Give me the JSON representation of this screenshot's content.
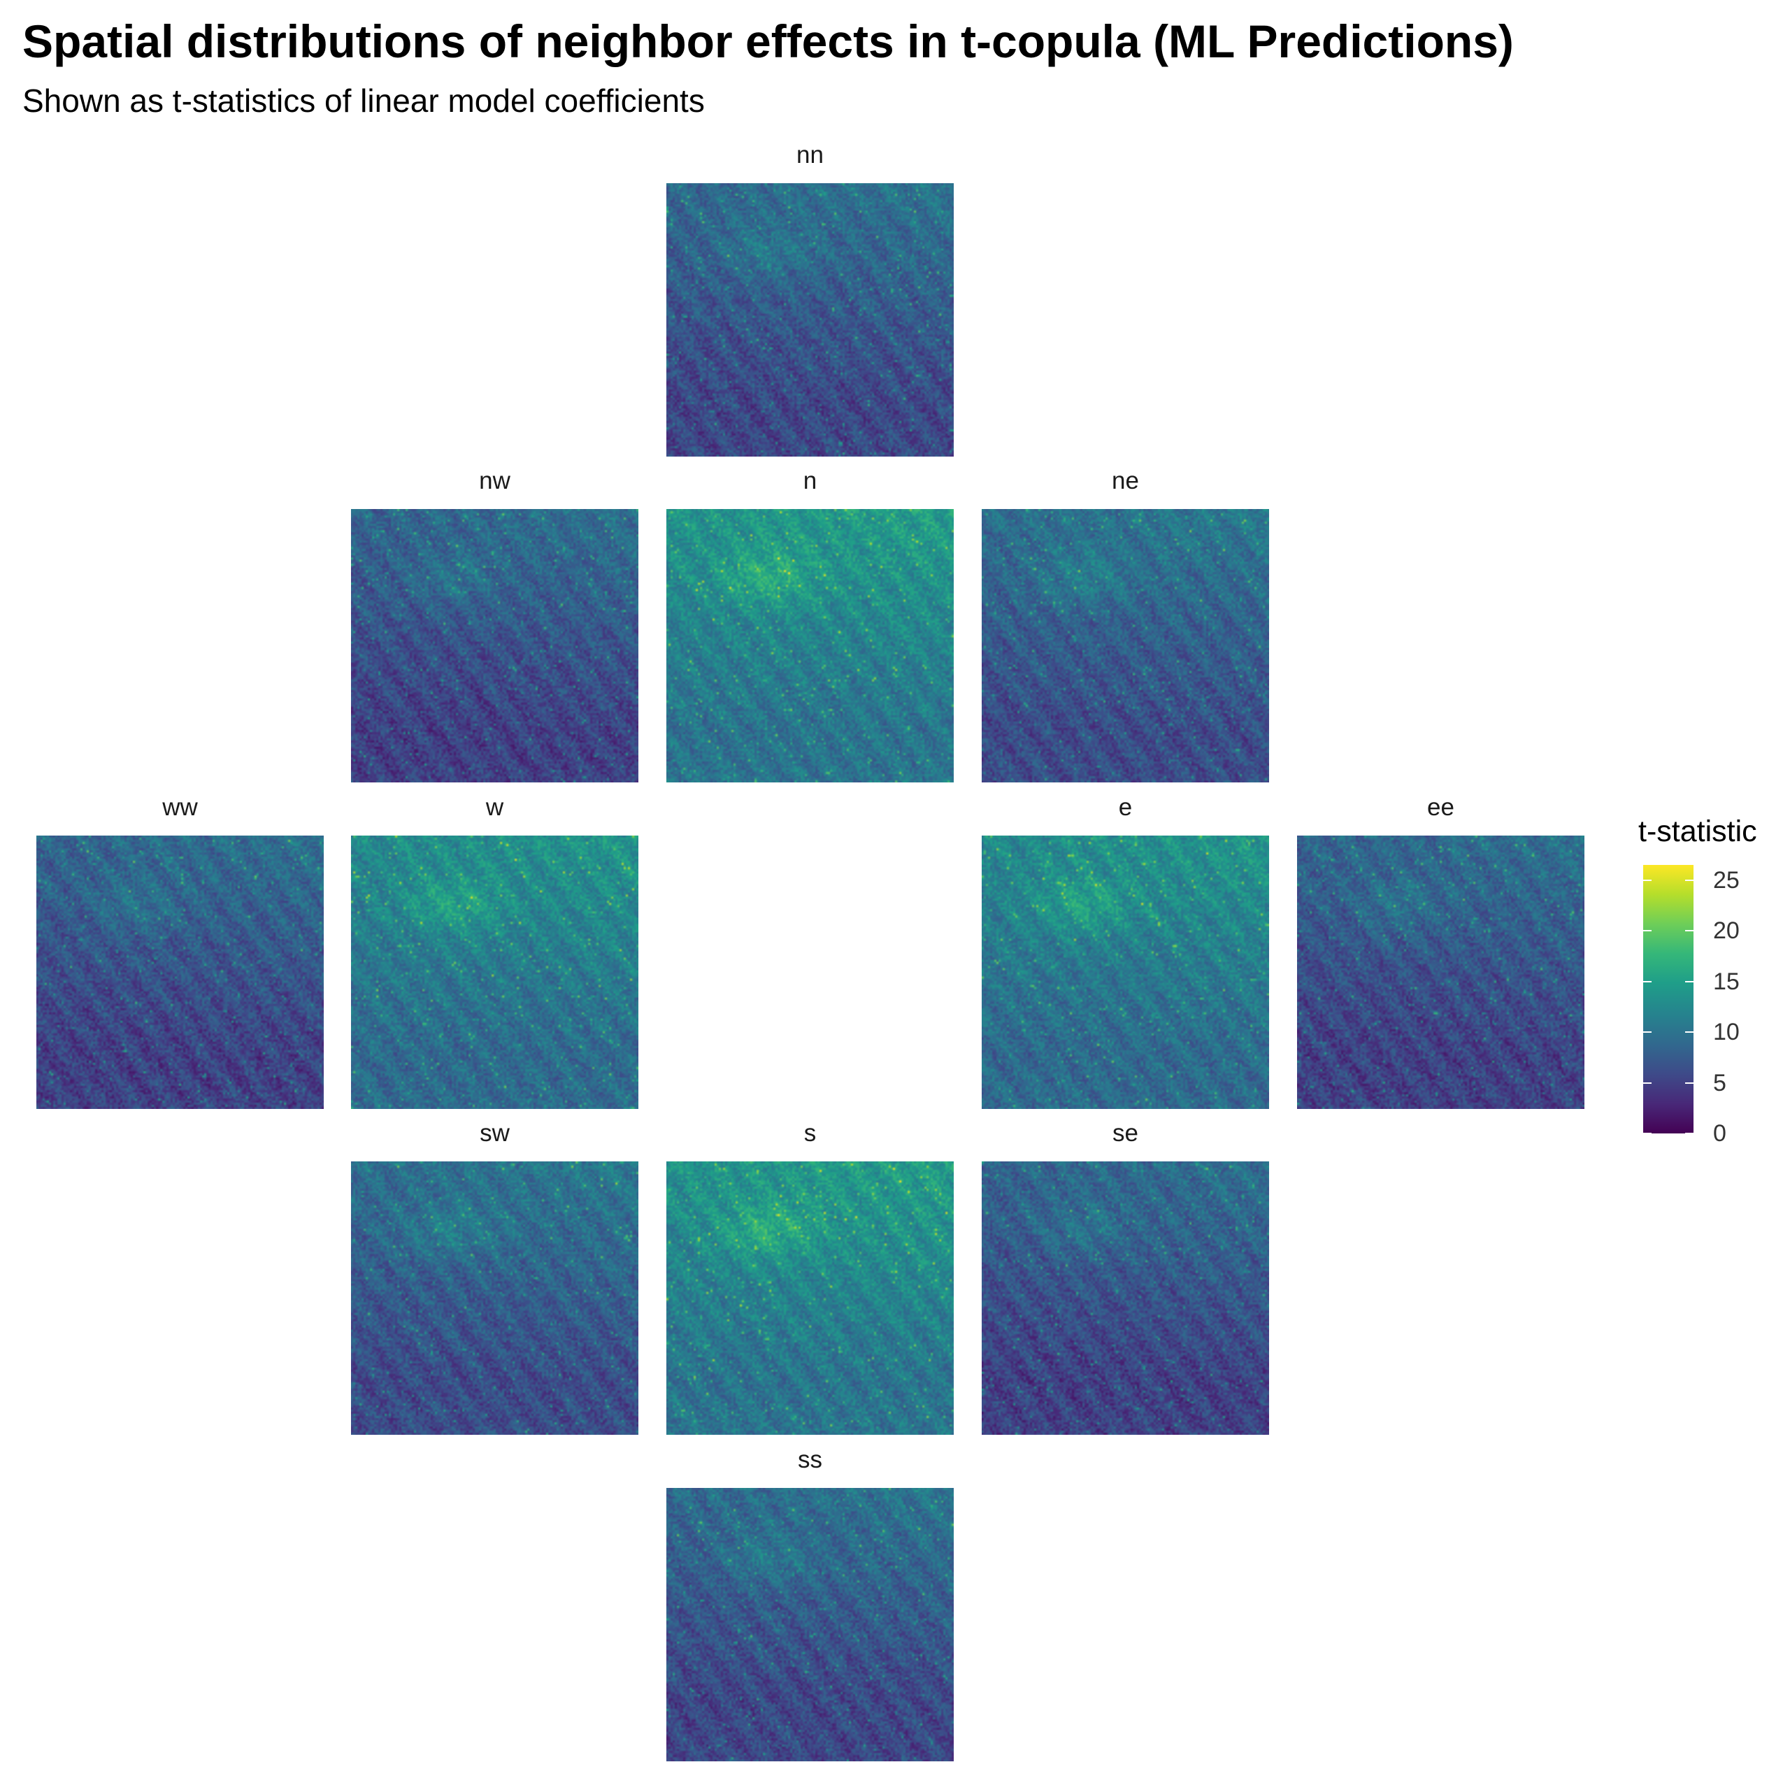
{
  "chart_data": {
    "type": "heatmap",
    "title": "Spatial distributions of neighbor effects in t-copula (ML Predictions)",
    "subtitle": "Shown as t-statistics of linear model coefficients",
    "xlabel": "",
    "ylabel": "",
    "panels": [
      {
        "label": "nn",
        "mean_t": 7.5
      },
      {
        "label": "nw",
        "mean_t": 7
      },
      {
        "label": "n",
        "mean_t": 12
      },
      {
        "label": "ne",
        "mean_t": 8
      },
      {
        "label": "ww",
        "mean_t": 7
      },
      {
        "label": "w",
        "mean_t": 11
      },
      {
        "label": "e",
        "mean_t": 11
      },
      {
        "label": "ee",
        "mean_t": 7
      },
      {
        "label": "sw",
        "mean_t": 8
      },
      {
        "label": "s",
        "mean_t": 12
      },
      {
        "label": "se",
        "mean_t": 7
      },
      {
        "label": "ss",
        "mean_t": 7.5
      }
    ],
    "color_scale": {
      "name": "viridis",
      "title": "t-statistic",
      "limits": [
        0,
        26.5
      ],
      "breaks": [
        0,
        5,
        10,
        15,
        20,
        25
      ],
      "break_labels": [
        "0",
        "5",
        "10",
        "15",
        "20",
        "25"
      ],
      "colors": [
        "#440154",
        "#482878",
        "#3e4a89",
        "#31688e",
        "#26828e",
        "#1f9e89",
        "#35b779",
        "#6ece58",
        "#b5de2b",
        "#fde725"
      ]
    },
    "grid": false,
    "legend_position": "right"
  }
}
